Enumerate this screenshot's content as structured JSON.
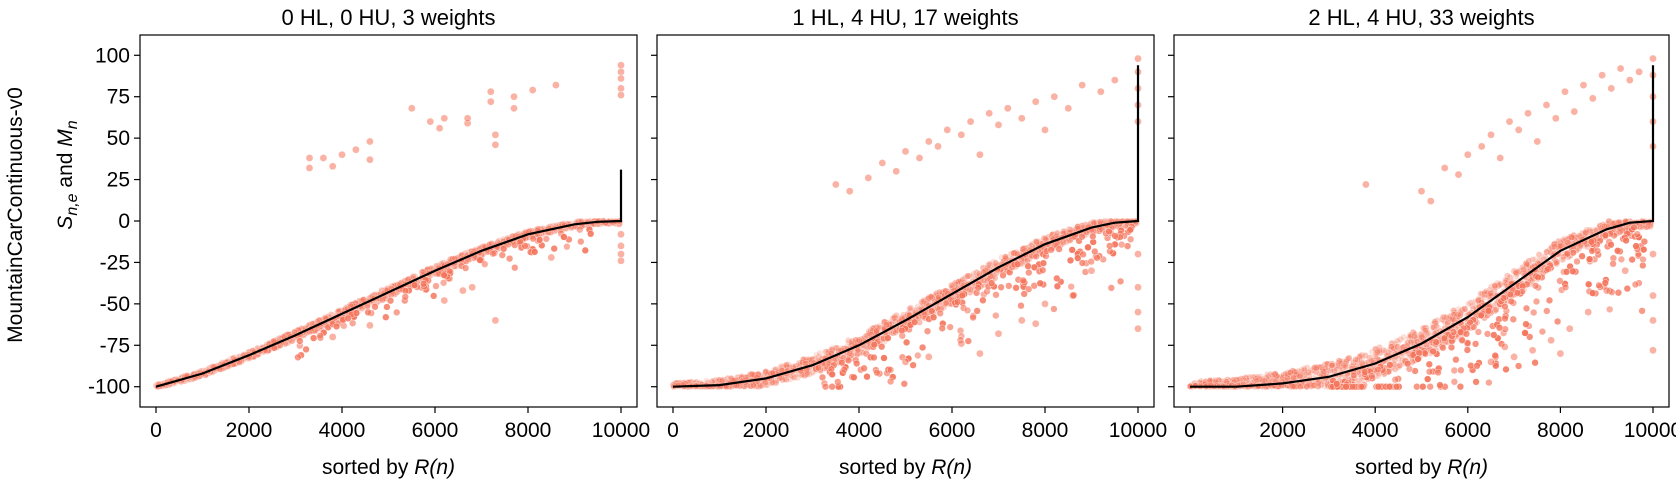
{
  "figure": {
    "row_label": "MountainCarContinuous-v0",
    "ylabel_parts": [
      "S",
      "n,e",
      " and ",
      "M",
      "n"
    ],
    "xlabel_parts": [
      "sorted by ",
      "R(n)"
    ]
  },
  "colors": {
    "points": "#f4735a",
    "mean_line": "#000000",
    "axes": "#000000",
    "background": "#ffffff"
  },
  "chart_data": [
    {
      "type": "scatter",
      "title": "0 HL, 0 HU, 3 weights",
      "xlim": [
        0,
        10000
      ],
      "ylim": [
        -105,
        105
      ],
      "xticks": [
        0,
        2000,
        4000,
        6000,
        8000,
        10000
      ],
      "yticks": [
        100,
        75,
        50,
        25,
        0,
        -25,
        -50,
        -75,
        -100
      ],
      "mean_curve": {
        "x": [
          0,
          1000,
          2000,
          3000,
          4000,
          5000,
          6000,
          7000,
          8000,
          9000,
          9500,
          10000,
          10000
        ],
        "y": [
          -100,
          -92,
          -81,
          -69,
          -56,
          -43,
          -30,
          -18,
          -8,
          -2,
          -0.5,
          0,
          31
        ]
      },
      "band_points": {
        "spread": 3,
        "low_start": -100
      },
      "outliers": [
        {
          "x": 3300,
          "y": 38
        },
        {
          "x": 3300,
          "y": 32
        },
        {
          "x": 3600,
          "y": 38
        },
        {
          "x": 3800,
          "y": 33
        },
        {
          "x": 4000,
          "y": 40
        },
        {
          "x": 4300,
          "y": 43
        },
        {
          "x": 4600,
          "y": 48
        },
        {
          "x": 4600,
          "y": 37
        },
        {
          "x": 5500,
          "y": 68
        },
        {
          "x": 5900,
          "y": 60
        },
        {
          "x": 6100,
          "y": 56
        },
        {
          "x": 6200,
          "y": 62
        },
        {
          "x": 6700,
          "y": 59
        },
        {
          "x": 6700,
          "y": 62
        },
        {
          "x": 7200,
          "y": 78
        },
        {
          "x": 7200,
          "y": 72
        },
        {
          "x": 7300,
          "y": 52
        },
        {
          "x": 7300,
          "y": 46
        },
        {
          "x": 7700,
          "y": 75
        },
        {
          "x": 7700,
          "y": 68
        },
        {
          "x": 8100,
          "y": 79
        },
        {
          "x": 8600,
          "y": 82
        },
        {
          "x": 10000,
          "y": 94
        },
        {
          "x": 10000,
          "y": 90
        },
        {
          "x": 10000,
          "y": 86
        },
        {
          "x": 10000,
          "y": 80
        },
        {
          "x": 10000,
          "y": 76
        },
        {
          "x": 10000,
          "y": -8
        },
        {
          "x": 10000,
          "y": -15
        },
        {
          "x": 10000,
          "y": -20
        },
        {
          "x": 10000,
          "y": -24
        },
        {
          "x": 6200,
          "y": -48
        },
        {
          "x": 6600,
          "y": -42
        },
        {
          "x": 7300,
          "y": -60
        },
        {
          "x": 4600,
          "y": -63
        },
        {
          "x": 3800,
          "y": -70
        },
        {
          "x": 8500,
          "y": -22
        },
        {
          "x": 6800,
          "y": -40
        }
      ]
    },
    {
      "type": "scatter",
      "title": "1 HL, 4 HU, 17 weights",
      "xlim": [
        0,
        10000
      ],
      "ylim": [
        -105,
        105
      ],
      "xticks": [
        0,
        2000,
        4000,
        6000,
        8000,
        10000
      ],
      "yticks": [
        100,
        75,
        50,
        25,
        0,
        -25,
        -50,
        -75,
        -100
      ],
      "mean_curve": {
        "x": [
          0,
          1000,
          2000,
          3000,
          4000,
          5000,
          6000,
          7000,
          8000,
          9000,
          9500,
          10000,
          10000
        ],
        "y": [
          -100,
          -99,
          -95,
          -87,
          -75,
          -60,
          -44,
          -28,
          -14,
          -4,
          -1,
          0,
          94
        ]
      },
      "band_points": {
        "spread": 6,
        "low_start": -100
      },
      "outliers": [
        {
          "x": 3500,
          "y": 22
        },
        {
          "x": 3800,
          "y": 18
        },
        {
          "x": 4200,
          "y": 26
        },
        {
          "x": 4500,
          "y": 35
        },
        {
          "x": 4800,
          "y": 30
        },
        {
          "x": 5000,
          "y": 42
        },
        {
          "x": 5300,
          "y": 38
        },
        {
          "x": 5500,
          "y": 48
        },
        {
          "x": 5700,
          "y": 45
        },
        {
          "x": 5900,
          "y": 55
        },
        {
          "x": 6200,
          "y": 52
        },
        {
          "x": 6400,
          "y": 60
        },
        {
          "x": 6600,
          "y": 40
        },
        {
          "x": 6800,
          "y": 65
        },
        {
          "x": 7000,
          "y": 58
        },
        {
          "x": 7200,
          "y": 68
        },
        {
          "x": 7500,
          "y": 62
        },
        {
          "x": 7800,
          "y": 72
        },
        {
          "x": 8000,
          "y": 55
        },
        {
          "x": 8200,
          "y": 75
        },
        {
          "x": 8500,
          "y": 68
        },
        {
          "x": 8800,
          "y": 82
        },
        {
          "x": 9200,
          "y": 78
        },
        {
          "x": 9500,
          "y": 85
        },
        {
          "x": 10000,
          "y": 98
        },
        {
          "x": 10000,
          "y": 90
        },
        {
          "x": 10000,
          "y": 80
        },
        {
          "x": 10000,
          "y": 70
        },
        {
          "x": 10000,
          "y": 60
        },
        {
          "x": 10000,
          "y": -20
        },
        {
          "x": 10000,
          "y": -40
        },
        {
          "x": 10000,
          "y": -55
        },
        {
          "x": 10000,
          "y": -65
        },
        {
          "x": 5000,
          "y": -85
        },
        {
          "x": 5500,
          "y": -82
        },
        {
          "x": 6200,
          "y": -74
        },
        {
          "x": 7000,
          "y": -68
        },
        {
          "x": 7500,
          "y": -60
        },
        {
          "x": 8000,
          "y": -50
        },
        {
          "x": 8600,
          "y": -45
        },
        {
          "x": 9000,
          "y": -30
        },
        {
          "x": 6600,
          "y": -80
        },
        {
          "x": 7800,
          "y": -62
        }
      ]
    },
    {
      "type": "scatter",
      "title": "2 HL, 4 HU, 33 weights",
      "xlim": [
        0,
        10000
      ],
      "ylim": [
        -105,
        105
      ],
      "xticks": [
        0,
        2000,
        4000,
        6000,
        8000,
        10000
      ],
      "yticks": [
        100,
        75,
        50,
        25,
        0,
        -25,
        -50,
        -75,
        -100
      ],
      "mean_curve": {
        "x": [
          0,
          1000,
          2000,
          3000,
          4000,
          5000,
          6000,
          7000,
          8000,
          9000,
          9500,
          10000,
          10000
        ],
        "y": [
          -100,
          -100,
          -98,
          -94,
          -86,
          -74,
          -58,
          -38,
          -18,
          -5,
          -1,
          0,
          94
        ]
      },
      "band_points": {
        "spread": 9,
        "low_start": -100
      },
      "outliers": [
        {
          "x": 3800,
          "y": 22
        },
        {
          "x": 5000,
          "y": 18
        },
        {
          "x": 5200,
          "y": 12
        },
        {
          "x": 5500,
          "y": 32
        },
        {
          "x": 5800,
          "y": 28
        },
        {
          "x": 6000,
          "y": 40
        },
        {
          "x": 6300,
          "y": 45
        },
        {
          "x": 6500,
          "y": 52
        },
        {
          "x": 6700,
          "y": 38
        },
        {
          "x": 6900,
          "y": 60
        },
        {
          "x": 7100,
          "y": 55
        },
        {
          "x": 7300,
          "y": 65
        },
        {
          "x": 7500,
          "y": 48
        },
        {
          "x": 7700,
          "y": 70
        },
        {
          "x": 7900,
          "y": 62
        },
        {
          "x": 8100,
          "y": 78
        },
        {
          "x": 8300,
          "y": 66
        },
        {
          "x": 8500,
          "y": 82
        },
        {
          "x": 8700,
          "y": 74
        },
        {
          "x": 8900,
          "y": 88
        },
        {
          "x": 9100,
          "y": 80
        },
        {
          "x": 9300,
          "y": 92
        },
        {
          "x": 9500,
          "y": 85
        },
        {
          "x": 9700,
          "y": 90
        },
        {
          "x": 10000,
          "y": 98
        },
        {
          "x": 10000,
          "y": 88
        },
        {
          "x": 10000,
          "y": 75
        },
        {
          "x": 10000,
          "y": 60
        },
        {
          "x": 10000,
          "y": 45
        },
        {
          "x": 10000,
          "y": -20
        },
        {
          "x": 10000,
          "y": -45
        },
        {
          "x": 10000,
          "y": -60
        },
        {
          "x": 10000,
          "y": -78
        },
        {
          "x": 6500,
          "y": -85
        },
        {
          "x": 7000,
          "y": -82
        },
        {
          "x": 7400,
          "y": -78
        },
        {
          "x": 7800,
          "y": -72
        },
        {
          "x": 8200,
          "y": -65
        },
        {
          "x": 8600,
          "y": -55
        },
        {
          "x": 9000,
          "y": -42
        },
        {
          "x": 9400,
          "y": -30
        },
        {
          "x": 6800,
          "y": -76
        },
        {
          "x": 8000,
          "y": -80
        }
      ]
    }
  ]
}
